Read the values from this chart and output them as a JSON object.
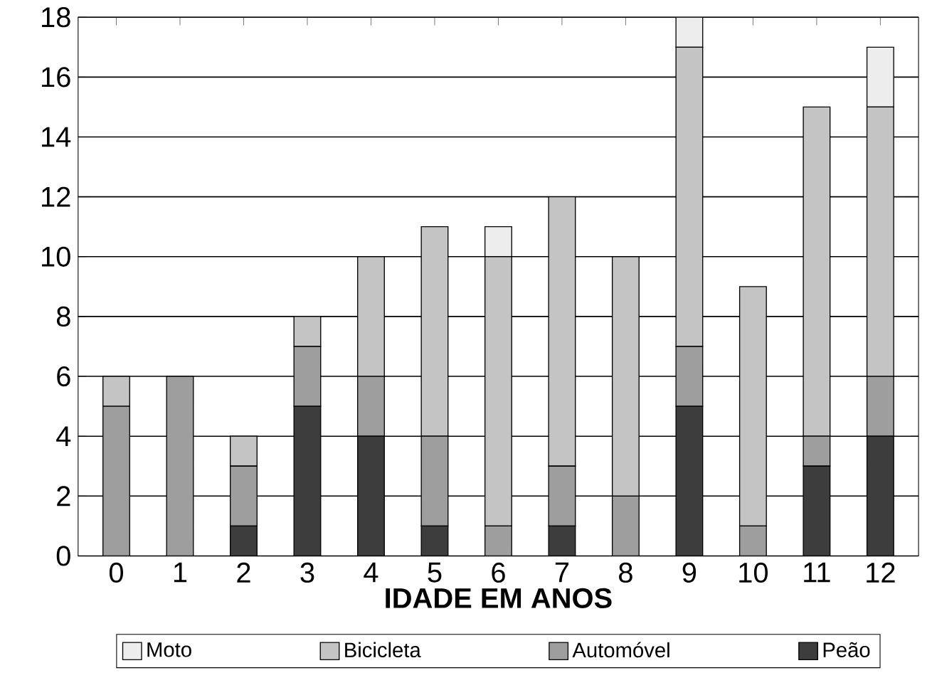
{
  "chart_data": {
    "type": "bar",
    "stacked": true,
    "xlabel": "IDADE EM ANOS",
    "categories": [
      "0",
      "1",
      "2",
      "3",
      "4",
      "5",
      "6",
      "7",
      "8",
      "9",
      "10",
      "11",
      "12"
    ],
    "series": [
      {
        "name": "Peão",
        "color": "#3d3d3d",
        "values": [
          0,
          0,
          1,
          5,
          4,
          1,
          0,
          1,
          0,
          5,
          0,
          3,
          4
        ]
      },
      {
        "name": "Automóvel",
        "color": "#9e9e9e",
        "values": [
          5,
          6,
          2,
          2,
          2,
          3,
          1,
          2,
          2,
          2,
          1,
          1,
          2
        ]
      },
      {
        "name": "Bicicleta",
        "color": "#c4c4c4",
        "values": [
          1,
          0,
          1,
          1,
          4,
          7,
          9,
          9,
          8,
          10,
          8,
          11,
          9
        ]
      },
      {
        "name": "Moto",
        "color": "#ededed",
        "values": [
          0,
          0,
          0,
          0,
          0,
          0,
          1,
          0,
          0,
          1,
          0,
          0,
          2
        ]
      }
    ],
    "ylim": [
      0,
      18
    ],
    "yticks": [
      0,
      2,
      4,
      6,
      8,
      10,
      12,
      14,
      16,
      18
    ],
    "grid": "y",
    "legend": "bottom"
  }
}
